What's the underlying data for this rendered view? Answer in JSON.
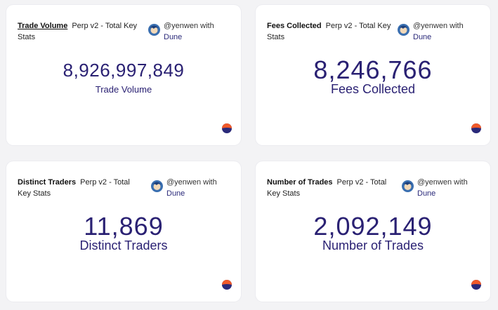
{
  "author": {
    "prefix": "@yenwen with",
    "platform": "Dune"
  },
  "cards": [
    {
      "title": "Trade Volume",
      "subtitle": "Perp v2 - Total Key Stats",
      "value": "8,926,997,849",
      "label": "Trade Volume"
    },
    {
      "title": "Fees Collected",
      "subtitle": "Perp v2 - Total Key Stats",
      "value": "8,246,766",
      "label": "Fees Collected"
    },
    {
      "title": "Distinct Traders",
      "subtitle": "Perp v2 - Total Key Stats",
      "value": "11,869",
      "label": "Distinct Traders"
    },
    {
      "title": "Number of Trades",
      "subtitle": "Perp v2 - Total Key Stats",
      "value": "2,092,149",
      "label": "Number of Trades"
    }
  ],
  "colors": {
    "value_text": "#2a2173",
    "link": "#2b2a7a",
    "logo_top": "#f05a2a",
    "logo_bottom": "#2a2a7a"
  }
}
